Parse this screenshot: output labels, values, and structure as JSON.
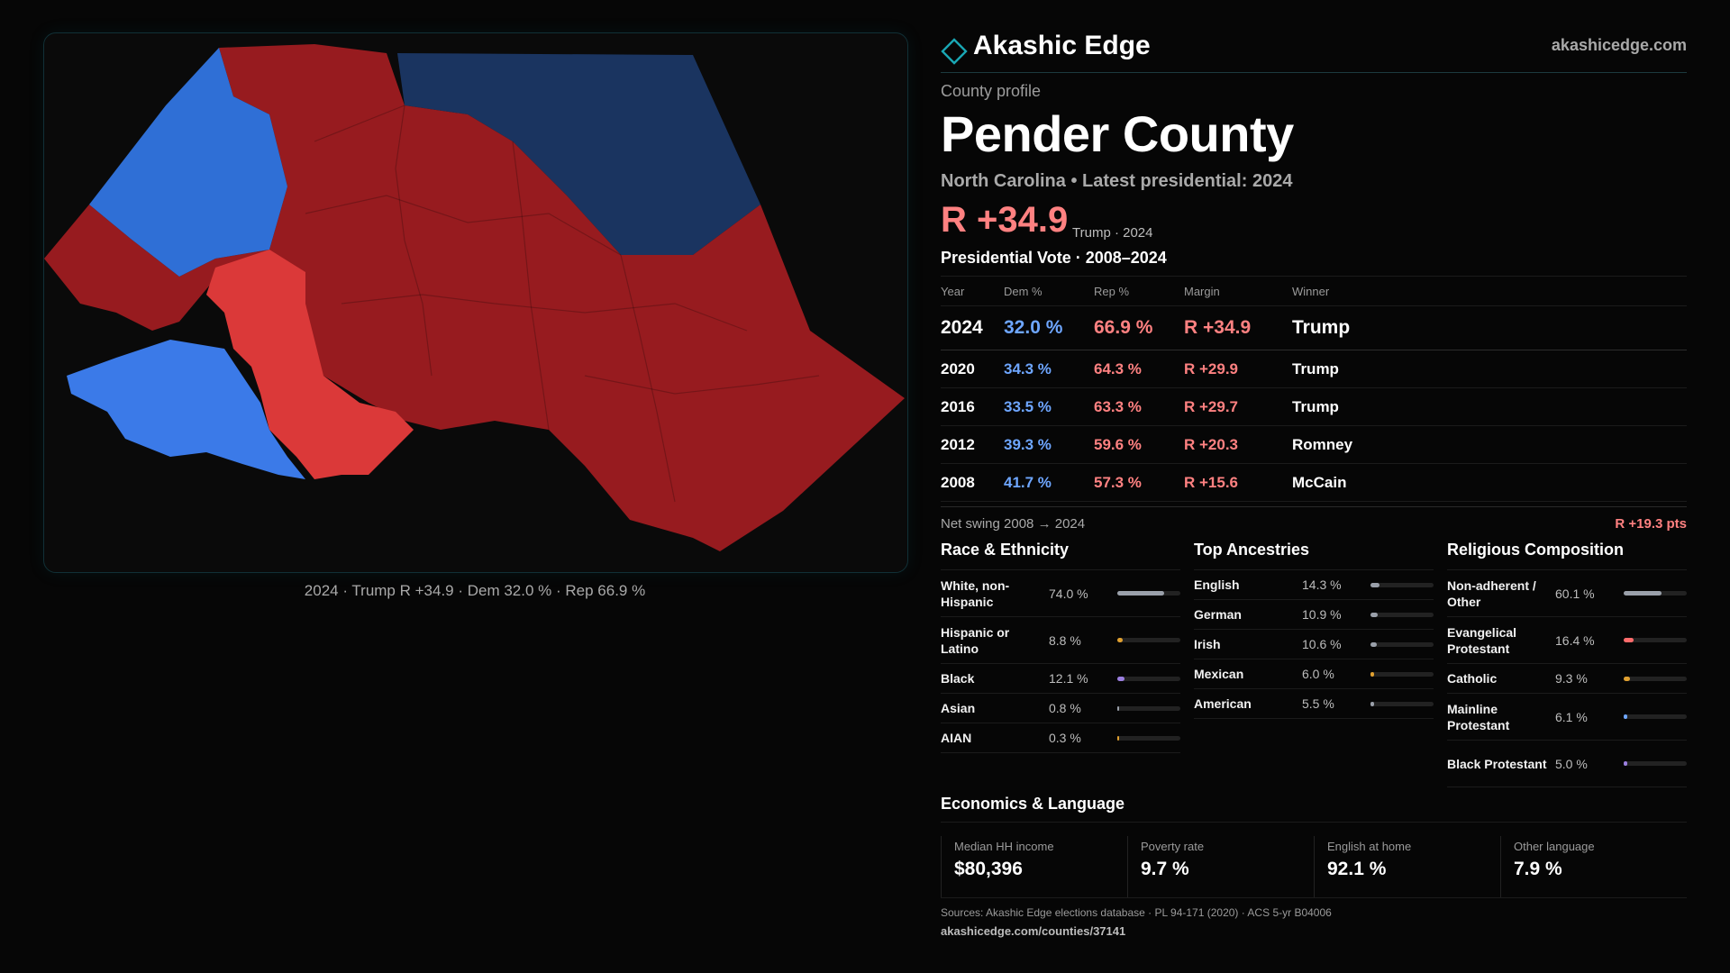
{
  "brand": {
    "name": "Akashic Edge",
    "site": "akashicedge.com",
    "logo_icon": "diamond-outline-icon"
  },
  "profile": {
    "kicker": "County profile",
    "county": "Pender County",
    "subtitle": "North Carolina • Latest presidential: 2024",
    "headline_margin": "R +34.9",
    "headline_note": "Trump · 2024"
  },
  "map": {
    "caption": "2024 · Trump R +34.9 · Dem 32.0 % · Rep 66.9 %",
    "colors": {
      "dark_red": "#971b1f",
      "light_red": "#db3939",
      "mid_blue": "#2f6fd6",
      "bright_blue": "#3b7ae8",
      "navy": "#1a3460"
    }
  },
  "vote": {
    "title": "Presidential Vote · 2008–2024",
    "headers": [
      "Year",
      "Dem %",
      "Rep %",
      "Margin",
      "Winner"
    ],
    "rows": [
      {
        "year": "2024",
        "dem": "32.0 %",
        "rep": "66.9 %",
        "margin": "R +34.9",
        "winner": "Trump"
      },
      {
        "year": "2020",
        "dem": "34.3 %",
        "rep": "64.3 %",
        "margin": "R +29.9",
        "winner": "Trump"
      },
      {
        "year": "2016",
        "dem": "33.5 %",
        "rep": "63.3 %",
        "margin": "R +29.7",
        "winner": "Trump"
      },
      {
        "year": "2012",
        "dem": "39.3 %",
        "rep": "59.6 %",
        "margin": "R +20.3",
        "winner": "Romney"
      },
      {
        "year": "2008",
        "dem": "41.7 %",
        "rep": "57.3 %",
        "margin": "R +15.6",
        "winner": "McCain"
      }
    ],
    "swing_label": "Net swing 2008 → 2024",
    "swing_value": "R +19.3 pts"
  },
  "race": {
    "title": "Race & Ethnicity",
    "items": [
      {
        "label": "White, non-Hispanic",
        "value": "74.0 %",
        "pct": 74.0,
        "color": "#9aa0aa",
        "tall": true
      },
      {
        "label": "Hispanic or Latino",
        "value": "8.8 %",
        "pct": 8.8,
        "color": "#e0a030",
        "tall": true
      },
      {
        "label": "Black",
        "value": "12.1 %",
        "pct": 12.1,
        "color": "#9b7fe0",
        "tall": false
      },
      {
        "label": "Asian",
        "value": "0.8 %",
        "pct": 0.8,
        "color": "#9aa0aa",
        "tall": false
      },
      {
        "label": "AIAN",
        "value": "0.3 %",
        "pct": 0.3,
        "color": "#e0a030",
        "tall": false
      }
    ]
  },
  "ancestry": {
    "title": "Top Ancestries",
    "items": [
      {
        "label": "English",
        "value": "14.3 %",
        "pct": 14.3,
        "color": "#9aa0aa",
        "tall": false
      },
      {
        "label": "German",
        "value": "10.9 %",
        "pct": 10.9,
        "color": "#9aa0aa",
        "tall": false
      },
      {
        "label": "Irish",
        "value": "10.6 %",
        "pct": 10.6,
        "color": "#9aa0aa",
        "tall": false
      },
      {
        "label": "Mexican",
        "value": "6.0 %",
        "pct": 6.0,
        "color": "#e0a030",
        "tall": false
      },
      {
        "label": "American",
        "value": "5.5 %",
        "pct": 5.5,
        "color": "#9aa0aa",
        "tall": false
      }
    ]
  },
  "religion": {
    "title": "Religious Composition",
    "items": [
      {
        "label": "Non-adherent / Other",
        "value": "60.1 %",
        "pct": 60.1,
        "color": "#9aa0aa",
        "tall": true
      },
      {
        "label": "Evangelical Protestant",
        "value": "16.4 %",
        "pct": 16.4,
        "color": "#ff6b6b",
        "tall": true
      },
      {
        "label": "Catholic",
        "value": "9.3 %",
        "pct": 9.3,
        "color": "#e0a030",
        "tall": false
      },
      {
        "label": "Mainline Protestant",
        "value": "6.1 %",
        "pct": 6.1,
        "color": "#6ea6ff",
        "tall": true
      },
      {
        "label": "Black Protestant",
        "value": "5.0 %",
        "pct": 5.0,
        "color": "#9b7fe0",
        "tall": true
      }
    ]
  },
  "economics": {
    "title": "Economics & Language",
    "cards": [
      {
        "label": "Median HH income",
        "value": "$80,396"
      },
      {
        "label": "Poverty rate",
        "value": "9.7 %"
      },
      {
        "label": "English at home",
        "value": "92.1 %"
      },
      {
        "label": "Other language",
        "value": "7.9 %"
      }
    ]
  },
  "sources": {
    "text": "Sources: Akashic Edge elections database · PL 94-171 (2020) · ACS 5-yr B04006",
    "url": "akashicedge.com/counties/37141"
  }
}
